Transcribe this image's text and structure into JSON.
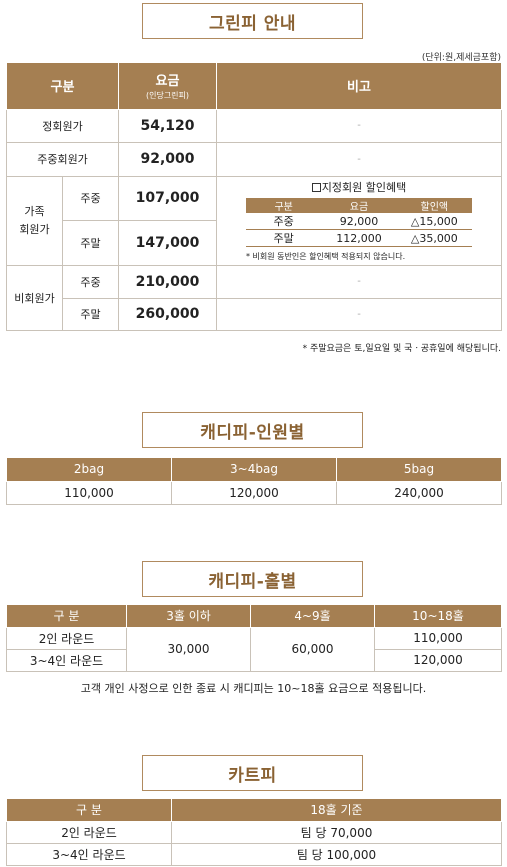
{
  "greenfee": {
    "title": "그린피 안내",
    "unit": "(단위:원,제세금포함)",
    "headers": {
      "category": "구분",
      "fee": "요금",
      "fee_sub": "(인당그린피)",
      "remark": "비고"
    },
    "regular_member": {
      "label": "정회원가",
      "fee": "54,120",
      "remark": "-"
    },
    "weekday_member": {
      "label": "주중회원가",
      "fee": "92,000",
      "remark": "-"
    },
    "family": {
      "label": "가족\n회원가",
      "weekday_label": "주중",
      "weekday_fee": "107,000",
      "weekend_label": "주말",
      "weekend_fee": "147,000"
    },
    "discount": {
      "title": "지정회원 할인혜택",
      "headers": [
        "구분",
        "요금",
        "할인액"
      ],
      "rows": [
        [
          "주중",
          "92,000",
          "△15,000"
        ],
        [
          "주말",
          "112,000",
          "△35,000"
        ]
      ],
      "note": "* 비회원 동반인은 할인혜택 적용되지 않습니다."
    },
    "non_member": {
      "label": "비회원가",
      "weekday_label": "주중",
      "weekday_fee": "210,000",
      "weekday_remark": "-",
      "weekend_label": "주말",
      "weekend_fee": "260,000",
      "weekend_remark": "-"
    },
    "note": "* 주말요금은 토,일요일 및 국ㆍ공휴일에 해당됩니다."
  },
  "caddie_person": {
    "title": "캐디피-인원별",
    "headers": [
      "2bag",
      "3~4bag",
      "5bag"
    ],
    "values": [
      "110,000",
      "120,000",
      "240,000"
    ]
  },
  "caddie_hole": {
    "title": "캐디피-홀별",
    "headers": [
      "구 분",
      "3홀 이하",
      "4~9홀",
      "10~18홀"
    ],
    "row1_label": "2인 라운드",
    "row2_label": "3~4인 라운드",
    "under3": "30,000",
    "h4to9": "60,000",
    "h10to18_row1": "110,000",
    "h10to18_row2": "120,000",
    "note": "고객 개인 사정으로 인한 종료 시 캐디피는 10~18홀 요금으로 적용됩니다."
  },
  "cart": {
    "title": "카트피",
    "headers": [
      "구 분",
      "18홀 기준"
    ],
    "rows": [
      [
        "2인 라운드",
        "팀 당 70,000"
      ],
      [
        "3~4인 라운드",
        "팀 당 100,000"
      ]
    ]
  }
}
